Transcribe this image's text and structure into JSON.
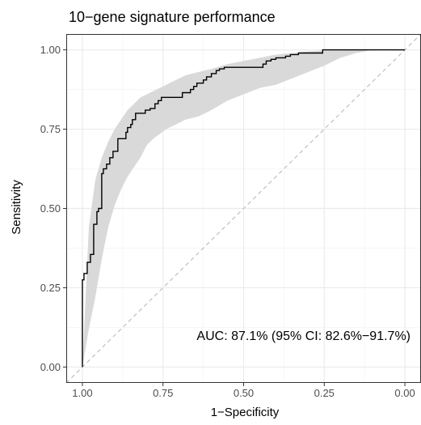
{
  "chart_data": {
    "type": "line",
    "title": "10−gene signature performance",
    "xlabel": "1−Specificity",
    "ylabel": "Sensitivity",
    "x_reversed": true,
    "xlim": [
      1.0,
      0.0
    ],
    "ylim": [
      0.0,
      1.0
    ],
    "x_ticks": [
      {
        "value": 1.0,
        "label": "1.00"
      },
      {
        "value": 0.75,
        "label": "0.75"
      },
      {
        "value": 0.5,
        "label": "0.50"
      },
      {
        "value": 0.25,
        "label": "0.25"
      },
      {
        "value": 0.0,
        "label": "0.00"
      }
    ],
    "y_ticks": [
      {
        "value": 0.0,
        "label": "0.00"
      },
      {
        "value": 0.25,
        "label": "0.25"
      },
      {
        "value": 0.5,
        "label": "0.50"
      },
      {
        "value": 0.75,
        "label": "0.75"
      },
      {
        "value": 1.0,
        "label": "1.00"
      }
    ],
    "grid": true,
    "annotation": "AUC: 87.1% (95% CI: 82.6%−91.7%)",
    "reference_line": {
      "from": [
        1.0,
        0.0
      ],
      "to": [
        0.0,
        1.0
      ],
      "style": "dashed"
    },
    "roc_curve": {
      "x": [
        1.0,
        1.0,
        0.995,
        0.995,
        0.985,
        0.985,
        0.975,
        0.975,
        0.965,
        0.965,
        0.955,
        0.955,
        0.95,
        0.95,
        0.94,
        0.94,
        0.935,
        0.935,
        0.925,
        0.925,
        0.915,
        0.915,
        0.905,
        0.905,
        0.89,
        0.89,
        0.865,
        0.865,
        0.86,
        0.86,
        0.85,
        0.85,
        0.845,
        0.845,
        0.835,
        0.835,
        0.805,
        0.805,
        0.79,
        0.79,
        0.775,
        0.775,
        0.765,
        0.765,
        0.755,
        0.755,
        0.69,
        0.69,
        0.665,
        0.665,
        0.655,
        0.655,
        0.645,
        0.645,
        0.625,
        0.625,
        0.615,
        0.615,
        0.6,
        0.6,
        0.585,
        0.585,
        0.575,
        0.575,
        0.56,
        0.56,
        0.44,
        0.44,
        0.43,
        0.43,
        0.415,
        0.415,
        0.4,
        0.4,
        0.37,
        0.37,
        0.355,
        0.355,
        0.33,
        0.33,
        0.255,
        0.255,
        0.0
      ],
      "y": [
        0.0,
        0.275,
        0.275,
        0.295,
        0.295,
        0.33,
        0.33,
        0.355,
        0.355,
        0.45,
        0.45,
        0.49,
        0.49,
        0.5,
        0.5,
        0.61,
        0.61,
        0.625,
        0.625,
        0.64,
        0.64,
        0.66,
        0.66,
        0.68,
        0.68,
        0.72,
        0.72,
        0.74,
        0.74,
        0.755,
        0.755,
        0.765,
        0.765,
        0.78,
        0.78,
        0.8,
        0.8,
        0.81,
        0.81,
        0.815,
        0.815,
        0.83,
        0.83,
        0.84,
        0.84,
        0.85,
        0.85,
        0.865,
        0.865,
        0.875,
        0.875,
        0.885,
        0.885,
        0.895,
        0.895,
        0.905,
        0.905,
        0.915,
        0.915,
        0.925,
        0.925,
        0.935,
        0.935,
        0.94,
        0.94,
        0.945,
        0.945,
        0.955,
        0.955,
        0.965,
        0.965,
        0.97,
        0.97,
        0.975,
        0.975,
        0.98,
        0.98,
        0.985,
        0.985,
        0.99,
        0.99,
        1.0,
        1.0
      ]
    },
    "ci_band": {
      "fill": "#d9d9d9",
      "x": [
        1.0,
        0.98,
        0.96,
        0.94,
        0.92,
        0.9,
        0.88,
        0.86,
        0.84,
        0.82,
        0.8,
        0.78,
        0.76,
        0.74,
        0.72,
        0.7,
        0.68,
        0.66,
        0.64,
        0.62,
        0.6,
        0.55,
        0.5,
        0.45,
        0.4,
        0.35,
        0.3,
        0.25,
        0.2,
        0.15,
        0.1,
        0.0
      ],
      "upper": [
        0.0,
        0.44,
        0.59,
        0.66,
        0.71,
        0.75,
        0.78,
        0.81,
        0.83,
        0.85,
        0.86,
        0.87,
        0.88,
        0.89,
        0.9,
        0.91,
        0.92,
        0.925,
        0.93,
        0.935,
        0.94,
        0.955,
        0.965,
        0.975,
        0.985,
        0.99,
        0.995,
        0.998,
        1.0,
        1.0,
        1.0,
        1.0
      ],
      "lower": [
        0.0,
        0.12,
        0.22,
        0.34,
        0.44,
        0.51,
        0.56,
        0.6,
        0.63,
        0.66,
        0.7,
        0.72,
        0.735,
        0.75,
        0.76,
        0.77,
        0.78,
        0.785,
        0.79,
        0.8,
        0.81,
        0.84,
        0.86,
        0.88,
        0.89,
        0.91,
        0.93,
        0.95,
        0.975,
        0.99,
        1.0,
        1.0
      ]
    },
    "colors": {
      "panel_background": "#ffffff",
      "panel_border": "#333333",
      "grid_major": "#ebebeb",
      "grid_minor": "#f5f5f5",
      "curve": "#000000",
      "reference": "#bfbfbf"
    }
  }
}
